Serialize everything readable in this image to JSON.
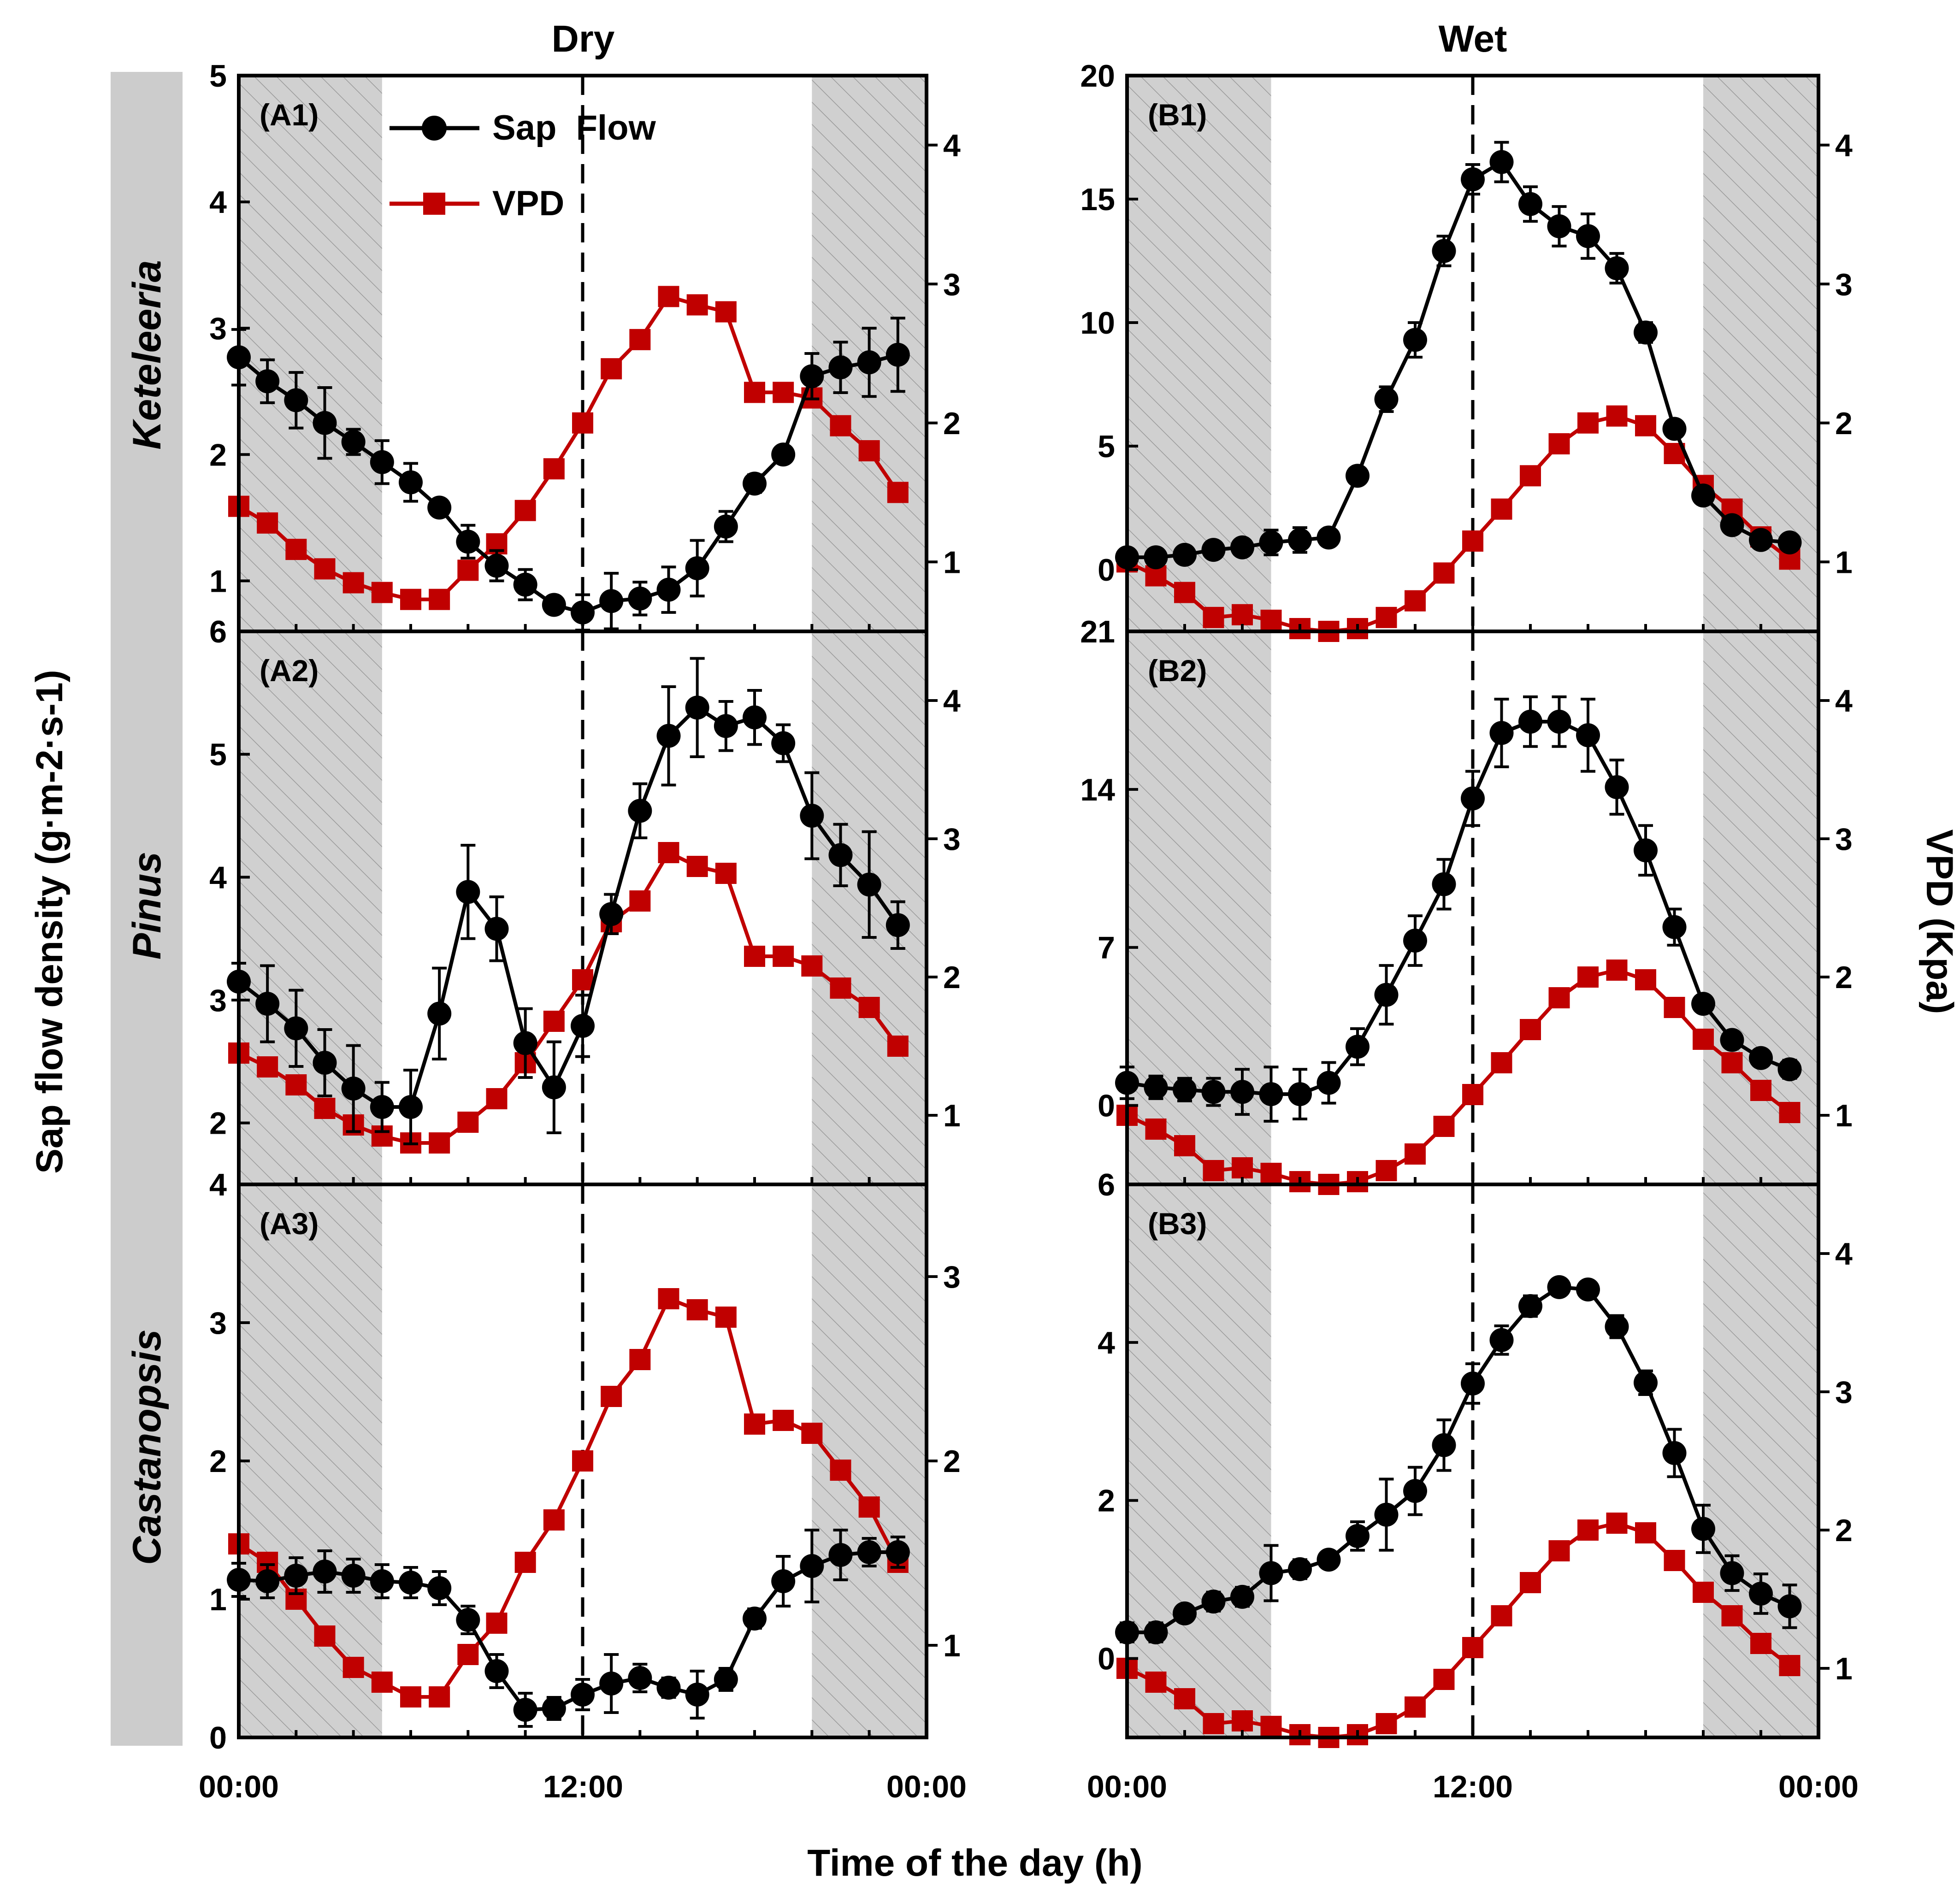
{
  "figure": {
    "columns": [
      "Dry",
      "Wet"
    ],
    "species": [
      "Keteleeria",
      "Pinus",
      "Castanopsis"
    ],
    "xlabel": "Time of the day (h)",
    "ylabel_left": "Sap flow density (g·m-2·s-1)",
    "ylabel_right": "VPD (Kpa)",
    "legend": {
      "sap_flow": "Sap  Flow",
      "vpd": "VPD"
    },
    "x_ticks": [
      "00:00",
      "12:00",
      "00:00"
    ]
  },
  "colors": {
    "sap_flow": "#000000",
    "vpd": "#c00000",
    "night_shade": "#cfcfcf",
    "species_band": "#cccccc"
  },
  "chart_data": [
    {
      "id": "A1",
      "label": "(A1)",
      "column": "Dry",
      "species": "Keteleeria",
      "type": "line",
      "x_hours": [
        0,
        1,
        2,
        3,
        4,
        5,
        6,
        7,
        8,
        9,
        10,
        11,
        12,
        13,
        14,
        15,
        16,
        17,
        18,
        19,
        20,
        21,
        22,
        23
      ],
      "night_hours": [
        [
          0,
          5
        ],
        [
          20,
          24
        ]
      ],
      "ylim_left": [
        0.6,
        5
      ],
      "ylim_right": [
        0.5,
        4.5
      ],
      "yticks_left": [
        1,
        2,
        3,
        4,
        5
      ],
      "yticks_right": [
        1,
        2,
        3,
        4
      ],
      "show_left_top_label": true,
      "left_top_label": "5",
      "left_bottom_label": "6",
      "series": [
        {
          "name": "Sap Flow",
          "axis": "left",
          "values": [
            2.77,
            2.58,
            2.43,
            2.25,
            2.1,
            1.94,
            1.78,
            1.58,
            1.31,
            1.12,
            0.97,
            0.81,
            0.75,
            0.84,
            0.86,
            0.93,
            1.1,
            1.43,
            1.77,
            2.0,
            2.62,
            2.69,
            2.73,
            2.79
          ],
          "errors": [
            0.22,
            0.17,
            0.22,
            0.28,
            0.1,
            0.17,
            0.15,
            0.06,
            0.13,
            0.12,
            0.12,
            0.06,
            0.14,
            0.22,
            0.13,
            0.18,
            0.22,
            0.12,
            0.07,
            0,
            0.18,
            0.2,
            0.27,
            0.29
          ]
        },
        {
          "name": "VPD",
          "axis": "right",
          "values": [
            1.4,
            1.28,
            1.09,
            0.95,
            0.85,
            0.78,
            0.73,
            0.73,
            0.94,
            1.13,
            1.37,
            1.67,
            2.0,
            2.39,
            2.6,
            2.91,
            2.85,
            2.8,
            2.22,
            2.22,
            2.18,
            1.98,
            1.8,
            1.5
          ]
        }
      ]
    },
    {
      "id": "A2",
      "label": "(A2)",
      "column": "Dry",
      "species": "Pinus",
      "type": "line",
      "x_hours": [
        0,
        1,
        2,
        3,
        4,
        5,
        6,
        7,
        8,
        9,
        10,
        11,
        12,
        13,
        14,
        15,
        16,
        17,
        18,
        19,
        20,
        21,
        22,
        23
      ],
      "night_hours": [
        [
          0,
          5
        ],
        [
          20,
          24
        ]
      ],
      "ylim_left": [
        1.5,
        6
      ],
      "ylim_right": [
        0.5,
        4.5
      ],
      "yticks_left": [
        2,
        3,
        4,
        5
      ],
      "yticks_right": [
        1,
        2,
        3,
        4
      ],
      "left_top_label": "6",
      "left_bottom_label": "4",
      "series": [
        {
          "name": "Sap Flow",
          "axis": "left",
          "values": [
            3.15,
            2.97,
            2.77,
            2.49,
            2.28,
            2.13,
            2.13,
            2.89,
            3.88,
            3.58,
            2.65,
            2.29,
            2.79,
            3.7,
            4.54,
            5.15,
            5.38,
            5.23,
            5.3,
            5.09,
            4.5,
            4.18,
            3.94,
            3.61
          ],
          "errors": [
            0.15,
            0.31,
            0.31,
            0.27,
            0.35,
            0.2,
            0.3,
            0.37,
            0.38,
            0.26,
            0.28,
            0.37,
            0.25,
            0.16,
            0.22,
            0.4,
            0.4,
            0.2,
            0.22,
            0.15,
            0.35,
            0.25,
            0.43,
            0.19
          ]
        },
        {
          "name": "VPD",
          "axis": "right",
          "values": [
            1.45,
            1.35,
            1.22,
            1.05,
            0.93,
            0.85,
            0.8,
            0.8,
            0.95,
            1.12,
            1.38,
            1.68,
            1.98,
            2.4,
            2.55,
            2.9,
            2.8,
            2.75,
            2.15,
            2.15,
            2.08,
            1.92,
            1.78,
            1.5
          ]
        }
      ]
    },
    {
      "id": "A3",
      "label": "(A3)",
      "column": "Dry",
      "species": "Castanopsis",
      "type": "line",
      "x_hours": [
        0,
        1,
        2,
        3,
        4,
        5,
        6,
        7,
        8,
        9,
        10,
        11,
        12,
        13,
        14,
        15,
        16,
        17,
        18,
        19,
        20,
        21,
        22,
        23
      ],
      "night_hours": [
        [
          0,
          5
        ],
        [
          20,
          24
        ]
      ],
      "ylim_left": [
        0,
        4
      ],
      "ylim_right": [
        0.5,
        3.5
      ],
      "yticks_left": [
        0,
        1,
        2,
        3
      ],
      "yticks_right": [
        1,
        2,
        3
      ],
      "left_top_label": "4",
      "left_bottom_label": "0",
      "series": [
        {
          "name": "Sap Flow",
          "axis": "left",
          "values": [
            1.14,
            1.13,
            1.17,
            1.2,
            1.17,
            1.13,
            1.12,
            1.08,
            0.85,
            0.48,
            0.2,
            0.21,
            0.31,
            0.39,
            0.43,
            0.36,
            0.31,
            0.42,
            0.86,
            1.13,
            1.24,
            1.32,
            1.34,
            1.34
          ],
          "errors": [
            0.12,
            0.12,
            0.13,
            0.15,
            0.12,
            0.12,
            0.11,
            0.12,
            0.1,
            0.12,
            0.12,
            0.08,
            0.11,
            0.21,
            0.1,
            0.07,
            0.17,
            0.08,
            0.07,
            0.18,
            0.26,
            0.18,
            0.1,
            0.11
          ]
        },
        {
          "name": "VPD",
          "axis": "right",
          "values": [
            1.55,
            1.45,
            1.25,
            1.05,
            0.88,
            0.8,
            0.72,
            0.72,
            0.95,
            1.12,
            1.45,
            1.68,
            2.0,
            2.35,
            2.55,
            2.88,
            2.82,
            2.78,
            2.2,
            2.22,
            2.15,
            1.95,
            1.75,
            1.45
          ]
        }
      ]
    },
    {
      "id": "B1",
      "label": "(B1)",
      "column": "Wet",
      "species": "Keteleeria",
      "type": "line",
      "x_hours": [
        0,
        1,
        2,
        3,
        4,
        5,
        6,
        7,
        8,
        9,
        10,
        11,
        12,
        13,
        14,
        15,
        16,
        17,
        18,
        19,
        20,
        21,
        22,
        23
      ],
      "night_hours": [
        [
          0,
          5
        ],
        [
          20,
          24
        ]
      ],
      "ylim_left": [
        -2.5,
        20
      ],
      "ylim_right": [
        0.5,
        4.5
      ],
      "yticks_left": [
        0,
        5,
        10,
        15,
        20
      ],
      "yticks_right": [
        1,
        2,
        3,
        4
      ],
      "left_top_label": "20",
      "left_bottom_label": "21",
      "series": [
        {
          "name": "Sap Flow",
          "axis": "left",
          "values": [
            0.5,
            0.5,
            0.6,
            0.8,
            0.9,
            1.1,
            1.2,
            1.3,
            3.8,
            6.9,
            9.3,
            12.9,
            15.8,
            16.5,
            14.8,
            13.9,
            13.5,
            12.2,
            9.6,
            5.7,
            3.0,
            1.8,
            1.2,
            1.1
          ],
          "errors": [
            0.3,
            0.3,
            0.2,
            0.3,
            0.3,
            0.5,
            0.5,
            0.3,
            0.2,
            0.5,
            0.7,
            0.6,
            0.6,
            0.8,
            0.7,
            0.8,
            0.9,
            0.6,
            0.4,
            0.3,
            0.3,
            0.3,
            0.3,
            0.3
          ]
        },
        {
          "name": "VPD",
          "axis": "right",
          "values": [
            1.0,
            0.9,
            0.78,
            0.6,
            0.62,
            0.58,
            0.52,
            0.5,
            0.52,
            0.6,
            0.72,
            0.92,
            1.15,
            1.38,
            1.62,
            1.85,
            2.0,
            2.05,
            1.98,
            1.78,
            1.55,
            1.38,
            1.18,
            1.02
          ]
        }
      ]
    },
    {
      "id": "B2",
      "label": "(B2)",
      "column": "Wet",
      "species": "Pinus",
      "type": "line",
      "x_hours": [
        0,
        1,
        2,
        3,
        4,
        5,
        6,
        7,
        8,
        9,
        10,
        11,
        12,
        13,
        14,
        15,
        16,
        17,
        18,
        19,
        20,
        21,
        22,
        23
      ],
      "night_hours": [
        [
          0,
          5
        ],
        [
          20,
          24
        ]
      ],
      "ylim_left": [
        -3.5,
        21
      ],
      "ylim_right": [
        0.5,
        4.5
      ],
      "yticks_left": [
        0,
        7,
        14
      ],
      "yticks_right": [
        1,
        2,
        3,
        4
      ],
      "left_top_label": "21",
      "left_bottom_label": "6",
      "series": [
        {
          "name": "Sap Flow",
          "axis": "left",
          "values": [
            1.0,
            0.8,
            0.7,
            0.6,
            0.6,
            0.5,
            0.5,
            1.0,
            2.6,
            4.9,
            7.3,
            9.8,
            13.6,
            16.5,
            17.0,
            17.0,
            16.4,
            14.1,
            11.3,
            7.9,
            4.5,
            2.9,
            2.1,
            1.6
          ],
          "errors": [
            0.7,
            0.5,
            0.5,
            0.6,
            1.0,
            1.2,
            1.1,
            0.9,
            0.8,
            1.3,
            1.1,
            1.1,
            1.2,
            1.5,
            1.1,
            1.1,
            1.6,
            1.2,
            1.1,
            0.8,
            0.3,
            0.3,
            0.3,
            0.4
          ]
        },
        {
          "name": "VPD",
          "axis": "right",
          "values": [
            1.0,
            0.9,
            0.78,
            0.6,
            0.62,
            0.58,
            0.52,
            0.5,
            0.52,
            0.6,
            0.72,
            0.92,
            1.15,
            1.38,
            1.62,
            1.85,
            2.0,
            2.05,
            1.98,
            1.78,
            1.55,
            1.38,
            1.18,
            1.02
          ]
        }
      ]
    },
    {
      "id": "B3",
      "label": "(B3)",
      "column": "Wet",
      "species": "Castanopsis",
      "type": "line",
      "x_hours": [
        0,
        1,
        2,
        3,
        4,
        5,
        6,
        7,
        8,
        9,
        10,
        11,
        12,
        13,
        14,
        15,
        16,
        17,
        18,
        19,
        20,
        21,
        22,
        23
      ],
      "night_hours": [
        [
          0,
          5
        ],
        [
          20,
          24
        ]
      ],
      "ylim_left": [
        -1,
        6
      ],
      "ylim_right": [
        0.5,
        4.5
      ],
      "yticks_left": [
        0,
        2,
        4
      ],
      "yticks_right": [
        1,
        2,
        3,
        4
      ],
      "left_top_label": "6",
      "left_bottom_label": "",
      "series": [
        {
          "name": "Sap Flow",
          "axis": "left",
          "values": [
            0.33,
            0.33,
            0.57,
            0.72,
            0.78,
            1.08,
            1.13,
            1.25,
            1.55,
            1.82,
            2.12,
            2.7,
            3.48,
            4.03,
            4.46,
            4.7,
            4.67,
            4.2,
            3.49,
            2.6,
            1.64,
            1.08,
            0.82,
            0.66
          ],
          "errors": [
            0.12,
            0.12,
            0.1,
            0.12,
            0.12,
            0.35,
            0.12,
            0.1,
            0.18,
            0.45,
            0.3,
            0.32,
            0.25,
            0.18,
            0.13,
            0.1,
            0.1,
            0.14,
            0.15,
            0.3,
            0.3,
            0.22,
            0.25,
            0.27
          ]
        },
        {
          "name": "VPD",
          "axis": "right",
          "values": [
            1.0,
            0.9,
            0.78,
            0.6,
            0.62,
            0.58,
            0.52,
            0.5,
            0.52,
            0.6,
            0.72,
            0.92,
            1.15,
            1.38,
            1.62,
            1.85,
            2.0,
            2.05,
            1.98,
            1.78,
            1.55,
            1.38,
            1.18,
            1.02
          ]
        }
      ]
    }
  ]
}
